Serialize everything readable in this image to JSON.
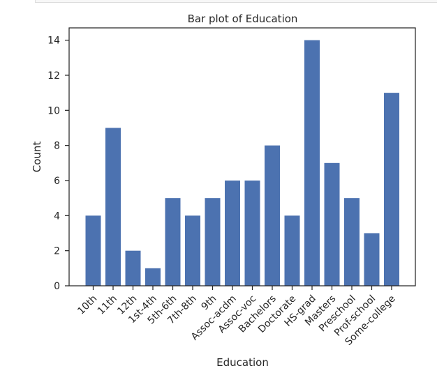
{
  "chart_data": {
    "type": "bar",
    "title": "Bar plot of Education",
    "xlabel": "Education",
    "ylabel": "Count",
    "categories": [
      "10th",
      "11th",
      "12th",
      "1st-4th",
      "5th-6th",
      "7th-8th",
      "9th",
      "Assoc-acdm",
      "Assoc-voc",
      "Bachelors",
      "Doctorate",
      "HS-grad",
      "Masters",
      "Preschool",
      "Prof-school",
      "Some-college"
    ],
    "values": [
      4,
      9,
      2,
      1,
      5,
      4,
      5,
      6,
      6,
      8,
      4,
      14,
      7,
      5,
      3,
      11
    ],
    "ylim": [
      0,
      14.7
    ],
    "yticks": [
      0,
      2,
      4,
      6,
      8,
      10,
      12,
      14
    ],
    "bar_color": "#4c72b0",
    "grid": false,
    "legend": "none"
  }
}
